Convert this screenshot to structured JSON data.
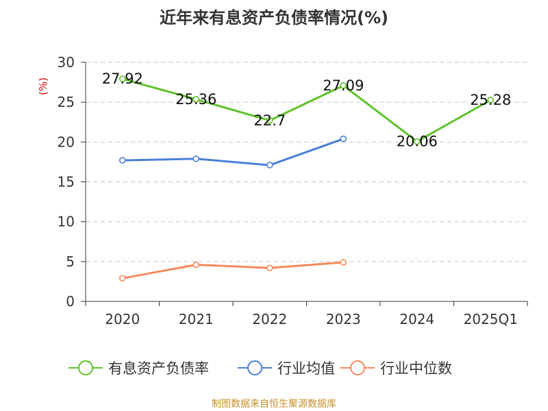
{
  "chart_data": {
    "type": "line",
    "title": "近年来有息资产负债率情况(%)",
    "ylabel": "(%)",
    "xlabel": "",
    "categories": [
      "2020",
      "2021",
      "2022",
      "2023",
      "2024",
      "2025Q1"
    ],
    "ylim": [
      0,
      30
    ],
    "yticks": [
      0,
      5,
      10,
      15,
      20,
      25,
      30
    ],
    "grid": "horizontal dashed",
    "legend_position": "bottom",
    "series": [
      {
        "name": "有息资产负债率",
        "color": "#5ec22a",
        "values": [
          27.92,
          25.36,
          22.7,
          27.09,
          20.06,
          25.28
        ],
        "labels": [
          "27.92",
          "25.36",
          "22.7",
          "27.09",
          "20.06",
          "25.28"
        ]
      },
      {
        "name": "行业均值",
        "color": "#4a7fd8",
        "values": [
          17.7,
          17.9,
          17.1,
          20.4,
          null,
          null
        ]
      },
      {
        "name": "行业中位数",
        "color": "#f58a5a",
        "values": [
          2.9,
          4.6,
          4.2,
          4.9,
          null,
          null
        ]
      }
    ],
    "source": "制图数据来自恒生聚源数据库"
  }
}
